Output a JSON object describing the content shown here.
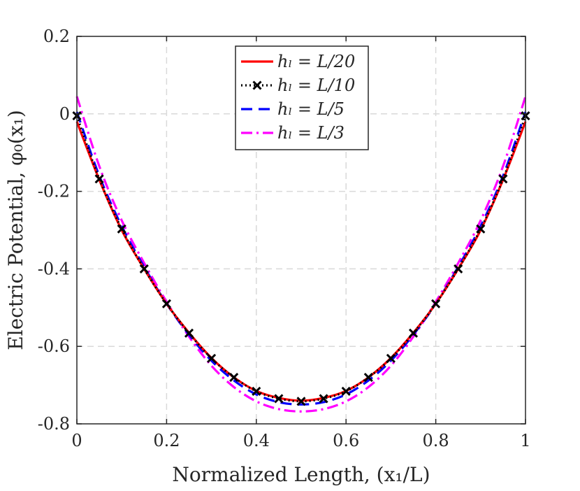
{
  "chart_data": {
    "type": "line",
    "title": "",
    "xlabel": "Normalized Length, (x₁/L)",
    "ylabel": "Electric Potential, φ₀(x₁)",
    "xlim": [
      0,
      1
    ],
    "ylim": [
      -0.8,
      0.2
    ],
    "xticks": [
      0,
      0.2,
      0.4,
      0.6,
      0.8,
      1
    ],
    "yticks": [
      -0.8,
      -0.6,
      -0.4,
      -0.2,
      0,
      0.2
    ],
    "xtick_labels": [
      "0",
      "0.2",
      "0.4",
      "0.6",
      "0.8",
      "1"
    ],
    "ytick_labels": [
      "-0.8",
      "-0.6",
      "-0.4",
      "-0.2",
      "0",
      "0.2"
    ],
    "grid": true,
    "legend_position": "top-center",
    "series": [
      {
        "name": "h_l = L/20",
        "label": "hₗ = L/20",
        "color": "#ff0000",
        "style": "solid",
        "marker": "none",
        "x": [
          0,
          0.05,
          0.1,
          0.15,
          0.2,
          0.25,
          0.3,
          0.35,
          0.4,
          0.45,
          0.5,
          0.55,
          0.6,
          0.65,
          0.7,
          0.75,
          0.8,
          0.85,
          0.9,
          0.95,
          1.0
        ],
        "y": [
          -0.02,
          -0.17,
          -0.3,
          -0.4,
          -0.49,
          -0.565,
          -0.63,
          -0.68,
          -0.715,
          -0.733,
          -0.74,
          -0.733,
          -0.715,
          -0.68,
          -0.63,
          -0.565,
          -0.49,
          -0.4,
          -0.3,
          -0.17,
          -0.02
        ]
      },
      {
        "name": "h_l = L/10",
        "label": "hₗ = L/10",
        "color": "#000000",
        "style": "dotted",
        "marker": "x",
        "x": [
          0,
          0.05,
          0.1,
          0.15,
          0.2,
          0.25,
          0.3,
          0.35,
          0.4,
          0.45,
          0.5,
          0.55,
          0.6,
          0.65,
          0.7,
          0.75,
          0.8,
          0.85,
          0.9,
          0.95,
          1.0
        ],
        "y": [
          -0.005,
          -0.168,
          -0.297,
          -0.4,
          -0.49,
          -0.566,
          -0.631,
          -0.68,
          -0.716,
          -0.735,
          -0.742,
          -0.735,
          -0.716,
          -0.68,
          -0.631,
          -0.566,
          -0.49,
          -0.4,
          -0.297,
          -0.168,
          -0.005
        ]
      },
      {
        "name": "h_l = L/5",
        "label": "hₗ = L/5",
        "color": "#0000ff",
        "style": "dashed",
        "marker": "none",
        "x": [
          0,
          0.05,
          0.1,
          0.15,
          0.2,
          0.25,
          0.3,
          0.35,
          0.4,
          0.45,
          0.5,
          0.55,
          0.6,
          0.65,
          0.7,
          0.75,
          0.8,
          0.85,
          0.9,
          0.95,
          1.0
        ],
        "y": [
          0.005,
          -0.16,
          -0.29,
          -0.395,
          -0.49,
          -0.57,
          -0.637,
          -0.688,
          -0.724,
          -0.744,
          -0.75,
          -0.744,
          -0.724,
          -0.688,
          -0.637,
          -0.57,
          -0.49,
          -0.395,
          -0.29,
          -0.16,
          0.005
        ]
      },
      {
        "name": "h_l = L/3",
        "label": "hₗ = L/3",
        "color": "#ff00ff",
        "style": "dashdot",
        "marker": "none",
        "x": [
          0,
          0.05,
          0.1,
          0.15,
          0.2,
          0.25,
          0.3,
          0.35,
          0.4,
          0.45,
          0.5,
          0.55,
          0.6,
          0.65,
          0.7,
          0.75,
          0.8,
          0.85,
          0.9,
          0.95,
          1.0
        ],
        "y": [
          0.045,
          -0.135,
          -0.275,
          -0.385,
          -0.485,
          -0.575,
          -0.65,
          -0.705,
          -0.742,
          -0.762,
          -0.768,
          -0.762,
          -0.742,
          -0.705,
          -0.65,
          -0.575,
          -0.485,
          -0.385,
          -0.275,
          -0.135,
          0.045
        ]
      }
    ]
  }
}
